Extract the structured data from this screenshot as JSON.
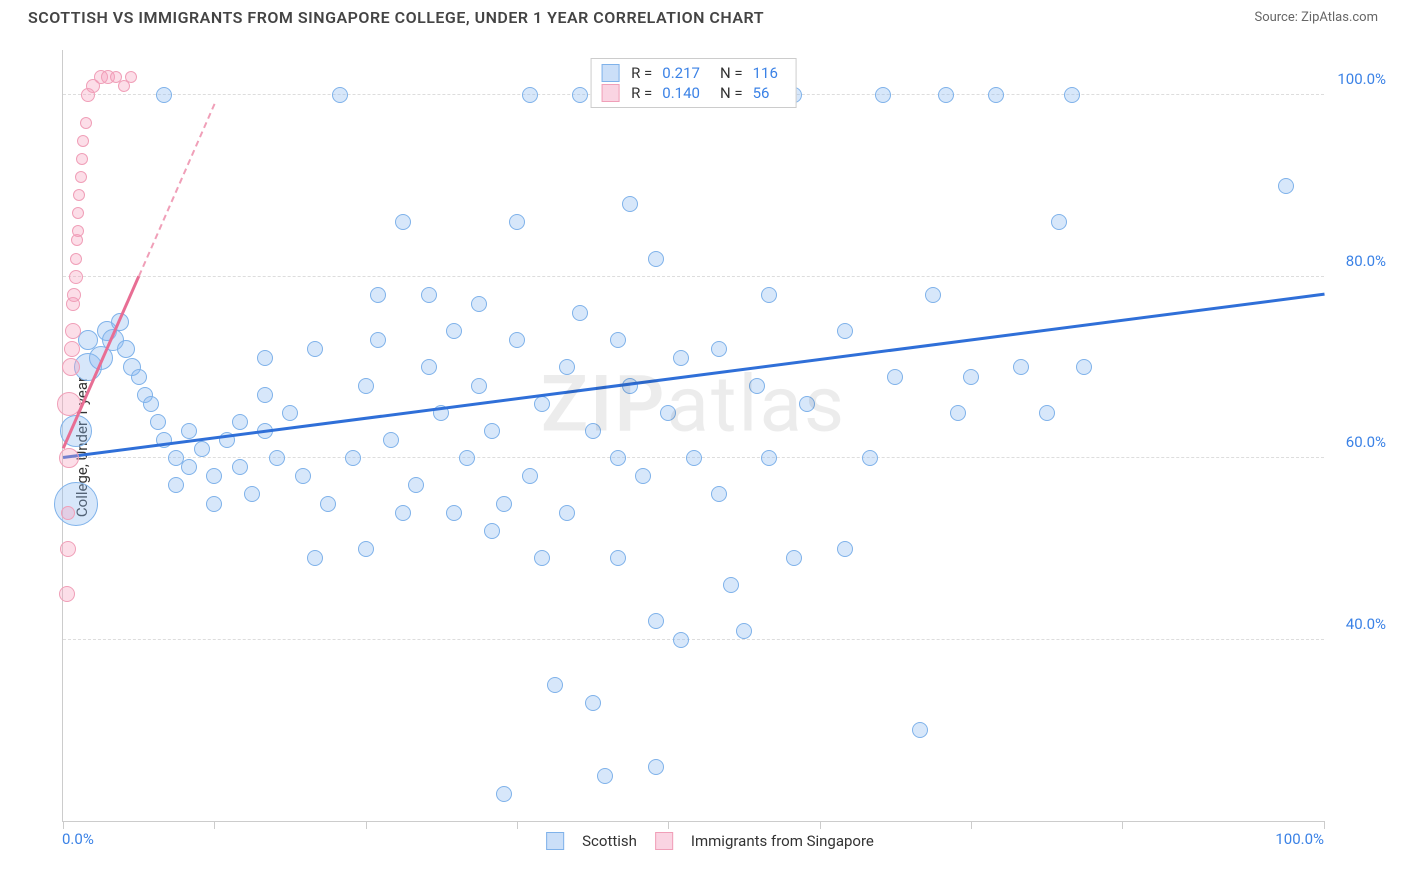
{
  "title": "SCOTTISH VS IMMIGRANTS FROM SINGAPORE COLLEGE, UNDER 1 YEAR CORRELATION CHART",
  "source_label": "Source: ZipAtlas.com",
  "watermark": "ZIPatlas",
  "chart": {
    "type": "scatter",
    "y_axis_title": "College, Under 1 year",
    "xlim": [
      0,
      100
    ],
    "ylim": [
      20,
      105
    ],
    "x_ticks": [
      0,
      12,
      24,
      36,
      48,
      60,
      72,
      84,
      100
    ],
    "y_grid": [
      40,
      60,
      80,
      100
    ],
    "y_tick_labels": [
      "40.0%",
      "60.0%",
      "80.0%",
      "100.0%"
    ],
    "x_tick_labels": {
      "min": "0.0%",
      "max": "100.0%"
    },
    "background_color": "#ffffff",
    "grid_color": "#dddddd",
    "axis_color": "#cccccc",
    "label_color": "#3b82e6",
    "marker_default_r": 8,
    "series": [
      {
        "name": "Scottish",
        "color": "#7fb2ea",
        "fill": "rgba(140,185,240,0.35)",
        "R": "0.217",
        "N": "116",
        "trend": {
          "x0": 0,
          "y0": 60,
          "x1": 100,
          "y1": 78,
          "color": "#2f6fd8",
          "width": 2.5
        },
        "points": [
          {
            "x": 1,
            "y": 63,
            "r": 16
          },
          {
            "x": 1,
            "y": 55,
            "r": 22
          },
          {
            "x": 2,
            "y": 70,
            "r": 14
          },
          {
            "x": 2,
            "y": 73,
            "r": 10
          },
          {
            "x": 3,
            "y": 71,
            "r": 12
          },
          {
            "x": 3.5,
            "y": 74,
            "r": 10
          },
          {
            "x": 4,
            "y": 73,
            "r": 11
          },
          {
            "x": 4.5,
            "y": 75,
            "r": 9
          },
          {
            "x": 5,
            "y": 72,
            "r": 9
          },
          {
            "x": 5.5,
            "y": 70,
            "r": 9
          },
          {
            "x": 6,
            "y": 69,
            "r": 8
          },
          {
            "x": 6.5,
            "y": 67,
            "r": 8
          },
          {
            "x": 7,
            "y": 66,
            "r": 8
          },
          {
            "x": 7.5,
            "y": 64,
            "r": 8
          },
          {
            "x": 8,
            "y": 62,
            "r": 8
          },
          {
            "x": 8,
            "y": 100,
            "r": 8
          },
          {
            "x": 9,
            "y": 60,
            "r": 8
          },
          {
            "x": 9,
            "y": 57,
            "r": 8
          },
          {
            "x": 10,
            "y": 63,
            "r": 8
          },
          {
            "x": 10,
            "y": 59,
            "r": 8
          },
          {
            "x": 11,
            "y": 61,
            "r": 8
          },
          {
            "x": 12,
            "y": 58,
            "r": 8
          },
          {
            "x": 12,
            "y": 55,
            "r": 8
          },
          {
            "x": 13,
            "y": 62,
            "r": 8
          },
          {
            "x": 14,
            "y": 64,
            "r": 8
          },
          {
            "x": 14,
            "y": 59,
            "r": 8
          },
          {
            "x": 15,
            "y": 56,
            "r": 8
          },
          {
            "x": 16,
            "y": 63,
            "r": 8
          },
          {
            "x": 16,
            "y": 67,
            "r": 8
          },
          {
            "x": 16,
            "y": 71,
            "r": 8
          },
          {
            "x": 17,
            "y": 60,
            "r": 8
          },
          {
            "x": 18,
            "y": 65,
            "r": 8
          },
          {
            "x": 19,
            "y": 58,
            "r": 8
          },
          {
            "x": 20,
            "y": 49,
            "r": 8
          },
          {
            "x": 20,
            "y": 72,
            "r": 8
          },
          {
            "x": 21,
            "y": 55,
            "r": 8
          },
          {
            "x": 22,
            "y": 100,
            "r": 8
          },
          {
            "x": 23,
            "y": 60,
            "r": 8
          },
          {
            "x": 24,
            "y": 50,
            "r": 8
          },
          {
            "x": 24,
            "y": 68,
            "r": 8
          },
          {
            "x": 25,
            "y": 73,
            "r": 8
          },
          {
            "x": 25,
            "y": 78,
            "r": 8
          },
          {
            "x": 26,
            "y": 62,
            "r": 8
          },
          {
            "x": 27,
            "y": 54,
            "r": 8
          },
          {
            "x": 27,
            "y": 86,
            "r": 8
          },
          {
            "x": 28,
            "y": 57,
            "r": 8
          },
          {
            "x": 29,
            "y": 70,
            "r": 8
          },
          {
            "x": 29,
            "y": 78,
            "r": 8
          },
          {
            "x": 30,
            "y": 65,
            "r": 8
          },
          {
            "x": 31,
            "y": 54,
            "r": 8
          },
          {
            "x": 31,
            "y": 74,
            "r": 8
          },
          {
            "x": 32,
            "y": 60,
            "r": 8
          },
          {
            "x": 33,
            "y": 77,
            "r": 8
          },
          {
            "x": 33,
            "y": 68,
            "r": 8
          },
          {
            "x": 34,
            "y": 52,
            "r": 8
          },
          {
            "x": 34,
            "y": 63,
            "r": 8
          },
          {
            "x": 35,
            "y": 23,
            "r": 8
          },
          {
            "x": 35,
            "y": 55,
            "r": 8
          },
          {
            "x": 36,
            "y": 86,
            "r": 8
          },
          {
            "x": 36,
            "y": 73,
            "r": 8
          },
          {
            "x": 37,
            "y": 100,
            "r": 8
          },
          {
            "x": 37,
            "y": 58,
            "r": 8
          },
          {
            "x": 38,
            "y": 66,
            "r": 8
          },
          {
            "x": 38,
            "y": 49,
            "r": 8
          },
          {
            "x": 39,
            "y": 35,
            "r": 8
          },
          {
            "x": 40,
            "y": 54,
            "r": 8
          },
          {
            "x": 40,
            "y": 70,
            "r": 8
          },
          {
            "x": 41,
            "y": 100,
            "r": 8
          },
          {
            "x": 41,
            "y": 76,
            "r": 8
          },
          {
            "x": 42,
            "y": 33,
            "r": 8
          },
          {
            "x": 42,
            "y": 63,
            "r": 8
          },
          {
            "x": 43,
            "y": 25,
            "r": 8
          },
          {
            "x": 44,
            "y": 49,
            "r": 8
          },
          {
            "x": 44,
            "y": 60,
            "r": 8
          },
          {
            "x": 44,
            "y": 73,
            "r": 8
          },
          {
            "x": 45,
            "y": 88,
            "r": 8
          },
          {
            "x": 45,
            "y": 68,
            "r": 8
          },
          {
            "x": 46,
            "y": 58,
            "r": 8
          },
          {
            "x": 47,
            "y": 82,
            "r": 8
          },
          {
            "x": 47,
            "y": 26,
            "r": 8
          },
          {
            "x": 47,
            "y": 42,
            "r": 8
          },
          {
            "x": 48,
            "y": 65,
            "r": 8
          },
          {
            "x": 49,
            "y": 71,
            "r": 8
          },
          {
            "x": 49,
            "y": 40,
            "r": 8
          },
          {
            "x": 50,
            "y": 100,
            "r": 8
          },
          {
            "x": 50,
            "y": 60,
            "r": 8
          },
          {
            "x": 52,
            "y": 56,
            "r": 8
          },
          {
            "x": 52,
            "y": 72,
            "r": 8
          },
          {
            "x": 53,
            "y": 46,
            "r": 8
          },
          {
            "x": 54,
            "y": 41,
            "r": 8
          },
          {
            "x": 55,
            "y": 68,
            "r": 8
          },
          {
            "x": 55,
            "y": 100,
            "r": 8
          },
          {
            "x": 56,
            "y": 60,
            "r": 8
          },
          {
            "x": 56,
            "y": 78,
            "r": 8
          },
          {
            "x": 58,
            "y": 49,
            "r": 8
          },
          {
            "x": 58,
            "y": 100,
            "r": 8
          },
          {
            "x": 59,
            "y": 66,
            "r": 8
          },
          {
            "x": 62,
            "y": 50,
            "r": 8
          },
          {
            "x": 62,
            "y": 74,
            "r": 8
          },
          {
            "x": 64,
            "y": 60,
            "r": 8
          },
          {
            "x": 65,
            "y": 100,
            "r": 8
          },
          {
            "x": 66,
            "y": 69,
            "r": 8
          },
          {
            "x": 68,
            "y": 30,
            "r": 8
          },
          {
            "x": 69,
            "y": 78,
            "r": 8
          },
          {
            "x": 70,
            "y": 100,
            "r": 8
          },
          {
            "x": 71,
            "y": 65,
            "r": 8
          },
          {
            "x": 72,
            "y": 69,
            "r": 8
          },
          {
            "x": 74,
            "y": 100,
            "r": 8
          },
          {
            "x": 76,
            "y": 70,
            "r": 8
          },
          {
            "x": 78,
            "y": 65,
            "r": 8
          },
          {
            "x": 79,
            "y": 86,
            "r": 8
          },
          {
            "x": 80,
            "y": 100,
            "r": 8
          },
          {
            "x": 81,
            "y": 70,
            "r": 8
          },
          {
            "x": 97,
            "y": 90,
            "r": 8
          }
        ]
      },
      {
        "name": "Immigrants from Singapore",
        "color": "#f09fb8",
        "fill": "rgba(245,160,190,0.35)",
        "R": "0.140",
        "N": "56",
        "trend": {
          "x0": 0,
          "y0": 61,
          "x1": 6,
          "y1": 80,
          "color": "#e86e94",
          "width": 2.5,
          "dashed_ext": {
            "x1": 12,
            "y1": 99
          }
        },
        "points": [
          {
            "x": 0.3,
            "y": 45,
            "r": 8
          },
          {
            "x": 0.4,
            "y": 54,
            "r": 7
          },
          {
            "x": 0.5,
            "y": 60,
            "r": 10
          },
          {
            "x": 0.5,
            "y": 66,
            "r": 12
          },
          {
            "x": 0.6,
            "y": 70,
            "r": 9
          },
          {
            "x": 0.7,
            "y": 72,
            "r": 8
          },
          {
            "x": 0.8,
            "y": 74,
            "r": 8
          },
          {
            "x": 0.8,
            "y": 77,
            "r": 7
          },
          {
            "x": 0.9,
            "y": 78,
            "r": 7
          },
          {
            "x": 1.0,
            "y": 80,
            "r": 7
          },
          {
            "x": 1.0,
            "y": 82,
            "r": 6
          },
          {
            "x": 1.1,
            "y": 84,
            "r": 6
          },
          {
            "x": 1.2,
            "y": 85,
            "r": 6
          },
          {
            "x": 1.2,
            "y": 87,
            "r": 6
          },
          {
            "x": 1.3,
            "y": 89,
            "r": 6
          },
          {
            "x": 1.4,
            "y": 91,
            "r": 6
          },
          {
            "x": 1.5,
            "y": 93,
            "r": 6
          },
          {
            "x": 1.6,
            "y": 95,
            "r": 6
          },
          {
            "x": 1.8,
            "y": 97,
            "r": 6
          },
          {
            "x": 2.0,
            "y": 100,
            "r": 7
          },
          {
            "x": 2.4,
            "y": 101,
            "r": 7
          },
          {
            "x": 3.0,
            "y": 102,
            "r": 7
          },
          {
            "x": 3.6,
            "y": 102,
            "r": 7
          },
          {
            "x": 4.2,
            "y": 102,
            "r": 6
          },
          {
            "x": 4.8,
            "y": 101,
            "r": 6
          },
          {
            "x": 5.4,
            "y": 102,
            "r": 6
          },
          {
            "x": 0.4,
            "y": 50,
            "r": 8
          }
        ]
      }
    ]
  },
  "legend_bottom": [
    {
      "swatch": "b",
      "label": "Scottish"
    },
    {
      "swatch": "p",
      "label": "Immigrants from Singapore"
    }
  ]
}
